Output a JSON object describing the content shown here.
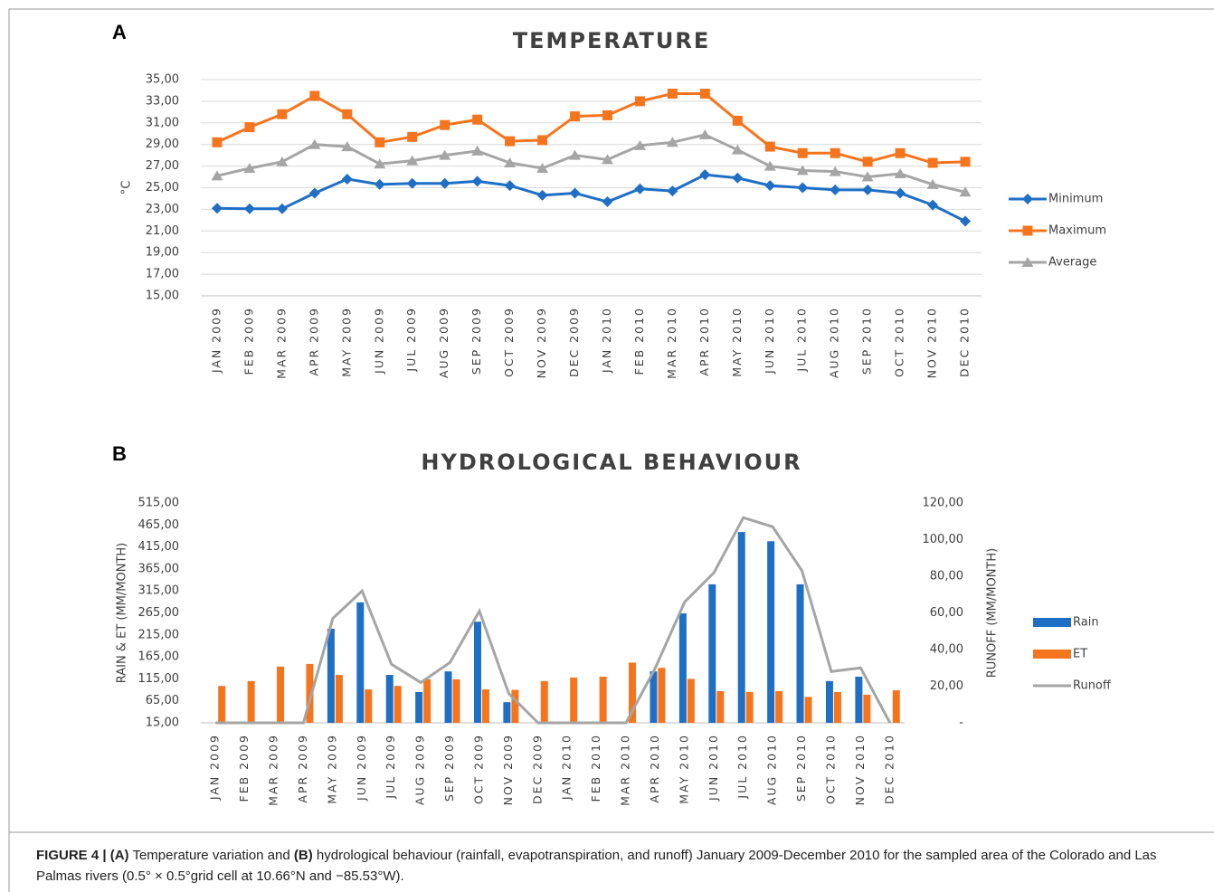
{
  "panel_labels": [
    "A",
    "B"
  ],
  "caption": [
    {
      "text": "FIGURE 4 | (A)",
      "bold": true
    },
    {
      "text": " Temperature variation and "
    },
    {
      "text": "(B)",
      "bold": true
    },
    {
      "text": " hydrological behaviour (rainfall, evapotranspiration, and runoff) January 2009-December 2010 for the sampled area of the Colorado and Las Palmas rivers (0.5° × 0.5°grid cell at 10.66°N and −85.53°W)."
    }
  ],
  "chart_data": [
    {
      "type": "line",
      "title": "TEMPERATURE",
      "y_label": "°C",
      "grid": true,
      "legend": "right",
      "categories": [
        "JAN 2009",
        "FEB 2009",
        "MAR 2009",
        "APR 2009",
        "MAY 2009",
        "JUN 2009",
        "JUL 2009",
        "AUG 2009",
        "SEP 2009",
        "OCT 2009",
        "NOV 2009",
        "DEC 2009",
        "JAN 2010",
        "FEB 2010",
        "MAR 2010",
        "APR 2010",
        "MAY 2010",
        "JUN 2010",
        "JUL 2010",
        "AUG 2010",
        "SEP 2010",
        "OCT 2010",
        "NOV 2010",
        "DEC 2010"
      ],
      "ylim": [
        15,
        35
      ],
      "yticks": [
        {
          "value": 15,
          "label": "15,00"
        },
        {
          "value": 17,
          "label": "17,00"
        },
        {
          "value": 19,
          "label": "19,00"
        },
        {
          "value": 21,
          "label": "21,00"
        },
        {
          "value": 23,
          "label": "23,00"
        },
        {
          "value": 25,
          "label": "25,00"
        },
        {
          "value": 27,
          "label": "27,00"
        },
        {
          "value": 29,
          "label": "29,00"
        },
        {
          "value": 31,
          "label": "31,00"
        },
        {
          "value": 33,
          "label": "33,00"
        },
        {
          "value": 35,
          "label": "35,00"
        }
      ],
      "series": [
        {
          "name": "Minimum",
          "color": "#1f6fc5",
          "marker": "diamond",
          "values": [
            23.1,
            23.05,
            23.05,
            24.5,
            25.8,
            25.3,
            25.4,
            25.4,
            25.6,
            25.2,
            24.3,
            24.5,
            23.7,
            24.9,
            24.7,
            26.2,
            25.9,
            25.2,
            25.0,
            24.8,
            24.8,
            24.5,
            23.4,
            21.9
          ]
        },
        {
          "name": "Maximum",
          "color": "#f5751f",
          "marker": "square",
          "values": [
            29.2,
            30.6,
            31.8,
            33.5,
            31.8,
            29.2,
            29.7,
            30.8,
            31.3,
            29.3,
            29.4,
            31.6,
            31.7,
            33.0,
            33.7,
            33.7,
            31.2,
            28.8,
            28.2,
            28.2,
            27.4,
            28.2,
            27.3,
            27.4
          ]
        },
        {
          "name": "Average",
          "color": "#a5a5a5",
          "marker": "triangle",
          "values": [
            26.1,
            26.8,
            27.4,
            29.0,
            28.8,
            27.2,
            27.5,
            28.0,
            28.4,
            27.3,
            26.8,
            28.0,
            27.6,
            28.9,
            29.2,
            29.9,
            28.5,
            27.0,
            26.6,
            26.5,
            26.0,
            26.3,
            25.3,
            24.6
          ]
        }
      ]
    },
    {
      "type": "bar",
      "title": "HYDROLOGICAL BEHAVIOUR",
      "y_label": "RAIN & ET (MM/MONTH)",
      "y2_label": "RUNOFF (MM/MONTH)",
      "grid": false,
      "legend": "right",
      "categories": [
        "JAN 2009",
        "FEB 2009",
        "MAR 2009",
        "APR 2009",
        "MAY 2009",
        "JUN 2009",
        "JUL 2009",
        "AUG 2009",
        "SEP 2009",
        "OCT 2009",
        "NOV 2009",
        "DEC 2009",
        "JAN 2010",
        "FEB 2010",
        "MAR 2010",
        "APR 2010",
        "MAY 2010",
        "JUN 2010",
        "JUL 2010",
        "AUG 2010",
        "SEP 2010",
        "OCT 2010",
        "NOV 2010",
        "DEC 2010"
      ],
      "ylim": [
        15,
        515
      ],
      "yticks": [
        {
          "value": 15,
          "label": "15,00"
        },
        {
          "value": 65,
          "label": "65,00"
        },
        {
          "value": 115,
          "label": "115,00"
        },
        {
          "value": 165,
          "label": "165,00"
        },
        {
          "value": 215,
          "label": "215,00"
        },
        {
          "value": 265,
          "label": "265,00"
        },
        {
          "value": 315,
          "label": "315,00"
        },
        {
          "value": 365,
          "label": "365,00"
        },
        {
          "value": 415,
          "label": "415,00"
        },
        {
          "value": 465,
          "label": "465,00"
        },
        {
          "value": 515,
          "label": "515,00"
        }
      ],
      "y2lim": [
        0,
        120
      ],
      "y2ticks": [
        {
          "value": 0,
          "label": "-"
        },
        {
          "value": 20,
          "label": "20,00"
        },
        {
          "value": 40,
          "label": "40,00"
        },
        {
          "value": 60,
          "label": "60,00"
        },
        {
          "value": 80,
          "label": "80,00"
        },
        {
          "value": 100,
          "label": "100,00"
        },
        {
          "value": 120,
          "label": "120,00"
        }
      ],
      "series": [
        {
          "name": "Rain",
          "color": "#1f6fc5",
          "type": "bar",
          "values": [
            15,
            15,
            15,
            15,
            229,
            289,
            124,
            85,
            132,
            245,
            62,
            15,
            15,
            15,
            15,
            132,
            264,
            330,
            449,
            428,
            330,
            110,
            120,
            15
          ]
        },
        {
          "name": "ET",
          "color": "#f5751f",
          "type": "bar",
          "values": [
            99,
            110,
            143,
            149,
            124,
            91,
            99,
            114,
            114,
            91,
            90,
            110,
            118,
            120,
            152,
            140,
            115,
            87,
            85,
            87,
            74,
            85,
            79,
            89
          ]
        },
        {
          "name": "Runoff",
          "color": "#a5a5a5",
          "type": "line",
          "axis": "y2",
          "values": [
            0,
            0,
            0,
            0,
            57,
            72,
            32,
            22,
            33,
            61,
            16,
            0,
            0,
            0,
            0,
            30,
            66,
            82,
            112,
            107,
            83,
            28,
            30,
            0
          ]
        }
      ]
    }
  ]
}
